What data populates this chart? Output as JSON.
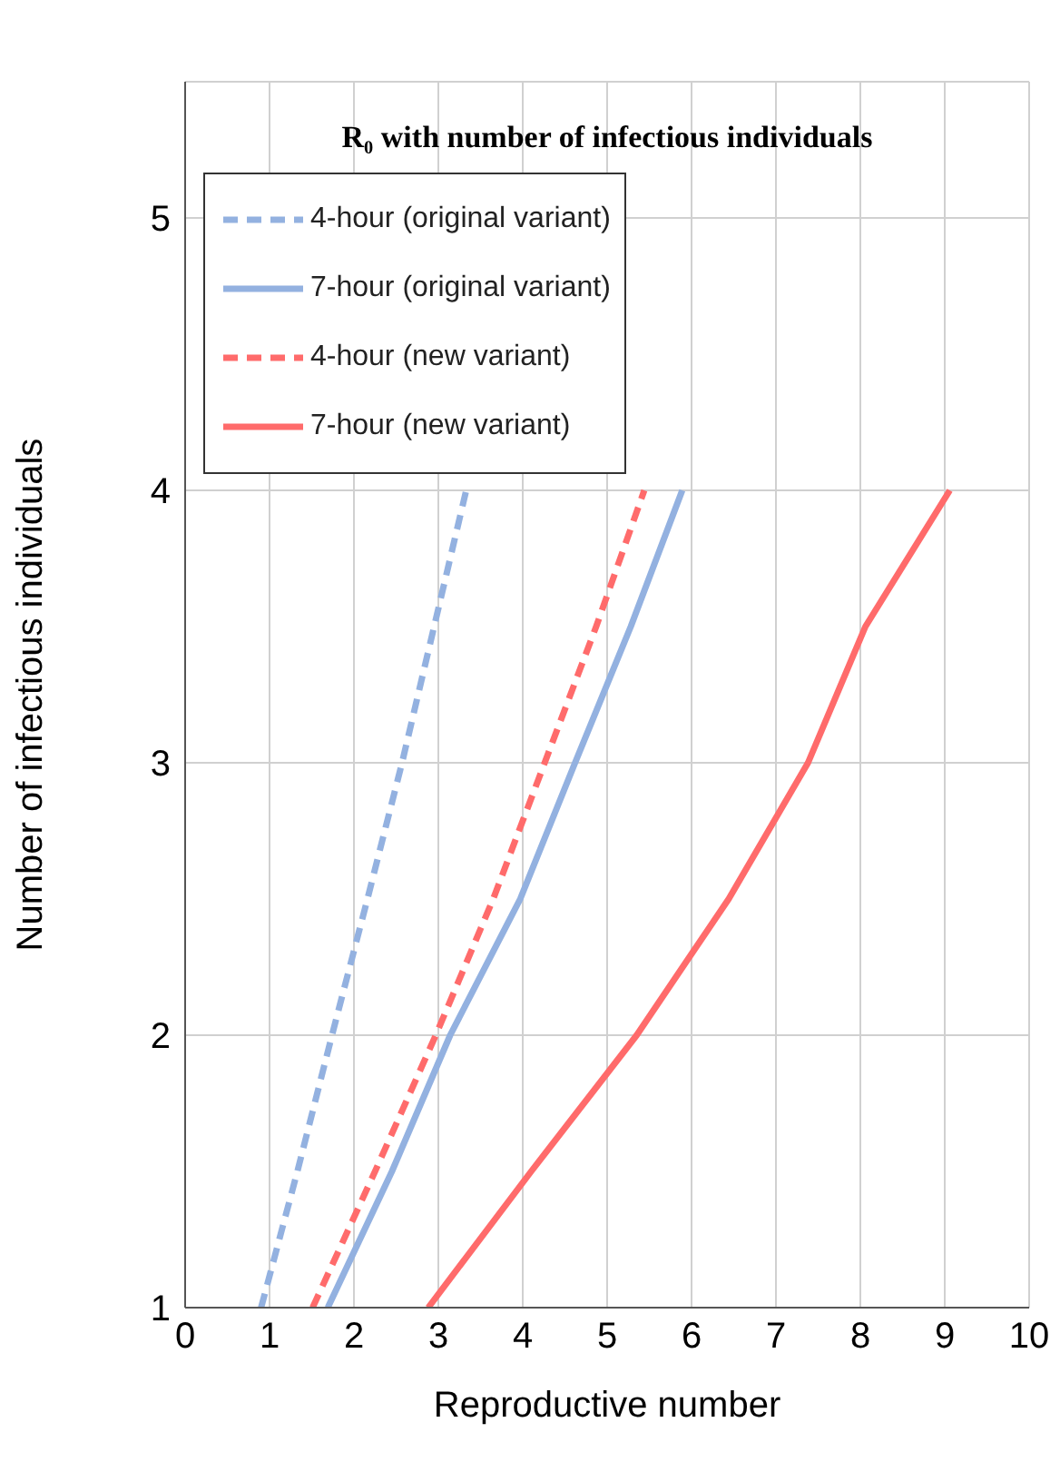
{
  "chart_data": {
    "type": "line",
    "title": "R₀ with number of infectious individuals",
    "xlabel": "Reproductive number",
    "ylabel": "Number of infectious individuals",
    "xlim": [
      0,
      10
    ],
    "xticks": [
      0,
      1,
      2,
      3,
      4,
      5,
      6,
      7,
      8,
      9,
      10
    ],
    "ylim": [
      1,
      5.5
    ],
    "yticks": [
      1,
      2,
      3,
      4,
      5
    ],
    "grid": true,
    "legend": "top left",
    "marker": "none",
    "series": [
      {
        "name": "4-hour (original variant)",
        "color": "#93b1e0",
        "line_style": "dashed",
        "x": [
          0.9,
          1.33,
          1.74,
          2.16,
          2.57,
          2.95,
          3.33
        ],
        "values": [
          1,
          1.5,
          2,
          2.5,
          3,
          3.5,
          4
        ]
      },
      {
        "name": "7-hour (original variant)",
        "color": "#93b1e0",
        "line_style": "solid",
        "x": [
          1.69,
          2.45,
          3.14,
          3.97,
          4.62,
          5.28,
          5.89
        ],
        "values": [
          1,
          1.5,
          2,
          2.5,
          3,
          3.5,
          4
        ]
      },
      {
        "name": "4-hour (new variant)",
        "color": "#ff6b6b",
        "line_style": "dashed",
        "x": [
          1.51,
          2.25,
          2.97,
          3.65,
          4.26,
          4.87,
          5.44
        ],
        "values": [
          1,
          1.5,
          2,
          2.5,
          3,
          3.5,
          4
        ]
      },
      {
        "name": "7-hour (new variant)",
        "color": "#ff6b6b",
        "line_style": "solid",
        "x": [
          2.88,
          4.1,
          5.35,
          6.44,
          7.38,
          8.06,
          9.06
        ],
        "values": [
          1,
          1.5,
          2,
          2.5,
          3,
          3.5,
          4
        ]
      }
    ]
  }
}
